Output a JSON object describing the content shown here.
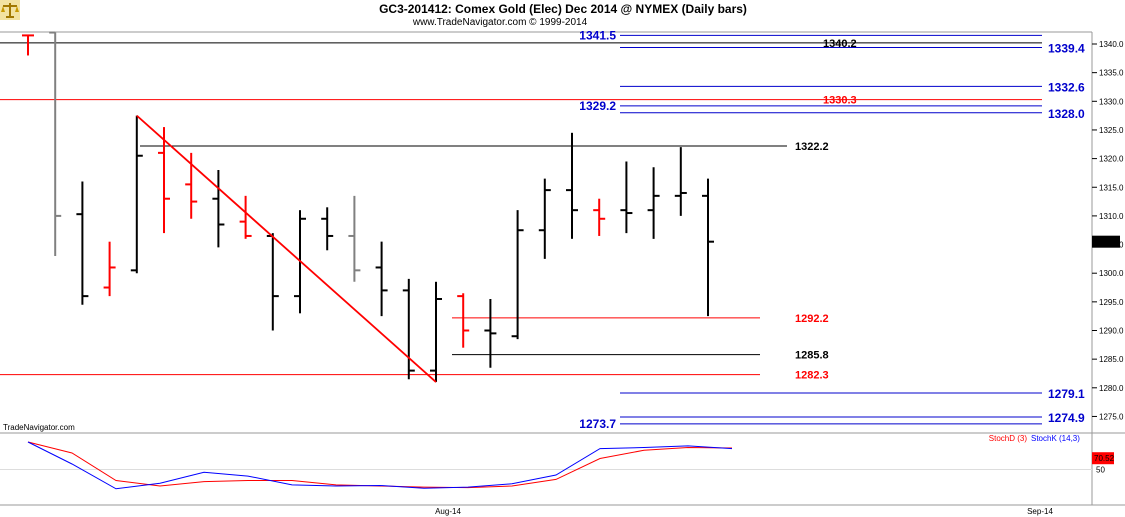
{
  "header": {
    "title": "GC3-201412:  Comex Gold (Elec) Dec 2014 @ NYMEX  (Daily bars)",
    "subtitle": "www.TradeNavigator.com © 1999-2014",
    "watermark": "TradeNavigator.com",
    "logo_icon": "scales-icon"
  },
  "colors": {
    "up_bar": "#000000",
    "down_bar": "#ff0000",
    "flat_bar": "#808080",
    "blue_level": "#0000cc",
    "red_level": "#ff0000",
    "black_level": "#000000",
    "stoch_d": "#ff0000",
    "stoch_k": "#0000ff"
  },
  "chart_data": {
    "type": "ohlc",
    "ylim": [
      1268,
      1345
    ],
    "y_ticks": [
      "1340.0",
      "1335.0",
      "1330.0",
      "1325.0",
      "1320.0",
      "1315.0",
      "1310.0",
      "1305.0",
      "1300.0",
      "1295.0",
      "1290.0",
      "1285.0",
      "1280.0",
      "1275.0"
    ],
    "x_ticks": [
      "Aug-14",
      "Sep-14"
    ],
    "last_price": "1305.5",
    "bars": [
      {
        "o": 1341.5,
        "h": 1341.5,
        "l": 1338.0,
        "c": 1341.5,
        "color": "down"
      },
      {
        "o": 1342.0,
        "h": 1342.0,
        "l": 1303.0,
        "c": 1310.0,
        "color": "flat"
      },
      {
        "o": 1310.3,
        "h": 1316.0,
        "l": 1294.5,
        "c": 1296.0,
        "color": "up"
      },
      {
        "o": 1297.5,
        "h": 1305.5,
        "l": 1296.0,
        "c": 1301.0,
        "color": "down"
      },
      {
        "o": 1300.5,
        "h": 1327.5,
        "l": 1300.0,
        "c": 1320.5,
        "color": "up"
      },
      {
        "o": 1321.0,
        "h": 1325.5,
        "l": 1307.0,
        "c": 1313.0,
        "color": "down"
      },
      {
        "o": 1315.5,
        "h": 1321.0,
        "l": 1309.5,
        "c": 1312.5,
        "color": "down"
      },
      {
        "o": 1313.0,
        "h": 1318.0,
        "l": 1304.5,
        "c": 1308.5,
        "color": "up"
      },
      {
        "o": 1309.0,
        "h": 1313.5,
        "l": 1306.0,
        "c": 1306.5,
        "color": "down"
      },
      {
        "o": 1306.5,
        "h": 1307.0,
        "l": 1290.0,
        "c": 1296.0,
        "color": "up"
      },
      {
        "o": 1296.0,
        "h": 1311.0,
        "l": 1293.0,
        "c": 1309.5,
        "color": "up"
      },
      {
        "o": 1309.5,
        "h": 1311.5,
        "l": 1304.0,
        "c": 1306.5,
        "color": "up"
      },
      {
        "o": 1306.5,
        "h": 1313.5,
        "l": 1298.5,
        "c": 1300.5,
        "color": "flat"
      },
      {
        "o": 1301.0,
        "h": 1305.5,
        "l": 1292.5,
        "c": 1297.0,
        "color": "up"
      },
      {
        "o": 1297.0,
        "h": 1299.0,
        "l": 1281.5,
        "c": 1283.0,
        "color": "up"
      },
      {
        "o": 1283.0,
        "h": 1298.5,
        "l": 1281.0,
        "c": 1295.5,
        "color": "up"
      },
      {
        "o": 1296.0,
        "h": 1296.5,
        "l": 1287.0,
        "c": 1290.0,
        "color": "down"
      },
      {
        "o": 1290.0,
        "h": 1295.5,
        "l": 1283.5,
        "c": 1289.5,
        "color": "up"
      },
      {
        "o": 1289.0,
        "h": 1311.0,
        "l": 1288.5,
        "c": 1307.5,
        "color": "up"
      },
      {
        "o": 1307.5,
        "h": 1316.5,
        "l": 1302.5,
        "c": 1314.5,
        "color": "up"
      },
      {
        "o": 1314.5,
        "h": 1324.5,
        "l": 1306.0,
        "c": 1311.0,
        "color": "up"
      },
      {
        "o": 1311.0,
        "h": 1313.0,
        "l": 1306.5,
        "c": 1309.5,
        "color": "down"
      },
      {
        "o": 1311.0,
        "h": 1319.5,
        "l": 1307.0,
        "c": 1310.5,
        "color": "up"
      },
      {
        "o": 1311.0,
        "h": 1318.5,
        "l": 1306.0,
        "c": 1313.5,
        "color": "up"
      },
      {
        "o": 1313.5,
        "h": 1322.0,
        "l": 1310.0,
        "c": 1314.0,
        "color": "up"
      },
      {
        "o": 1313.5,
        "h": 1316.5,
        "l": 1292.5,
        "c": 1305.5,
        "color": "up"
      }
    ],
    "levels": [
      {
        "value": 1341.5,
        "label": "1341.5",
        "color": "blue",
        "label_side": "left",
        "span": "short"
      },
      {
        "value": 1340.2,
        "label": "1340.2",
        "color": "black",
        "label_side": "mid",
        "span": "full"
      },
      {
        "value": 1339.4,
        "label": "1339.4",
        "color": "blue",
        "label_side": "right",
        "span": "short"
      },
      {
        "value": 1332.6,
        "label": "1332.6",
        "color": "blue",
        "label_side": "right",
        "span": "short"
      },
      {
        "value": 1330.3,
        "label": "1330.3",
        "color": "red",
        "label_side": "mid",
        "span": "full"
      },
      {
        "value": 1329.2,
        "label": "1329.2",
        "color": "blue",
        "label_side": "left",
        "span": "short"
      },
      {
        "value": 1328.0,
        "label": "1328.0",
        "color": "blue",
        "label_side": "right",
        "span": "short"
      },
      {
        "value": 1322.2,
        "label": "1322.2",
        "color": "black",
        "label_side": "mid2",
        "span": "from_high"
      },
      {
        "value": 1292.2,
        "label": "1292.2",
        "color": "red",
        "label_side": "mid2",
        "span": "from_mid"
      },
      {
        "value": 1285.8,
        "label": "1285.8",
        "color": "black",
        "label_side": "mid2",
        "span": "from_mid"
      },
      {
        "value": 1282.3,
        "label": "1282.3",
        "color": "red",
        "label_side": "mid2",
        "span": "full"
      },
      {
        "value": 1279.1,
        "label": "1279.1",
        "color": "blue",
        "label_side": "right",
        "span": "short"
      },
      {
        "value": 1274.9,
        "label": "1274.9",
        "color": "blue",
        "label_side": "right",
        "span": "short"
      },
      {
        "value": 1273.7,
        "label": "1273.7",
        "color": "blue",
        "label_side": "left",
        "span": "short"
      }
    ],
    "trendline": {
      "from_bar": 4,
      "from_value": 1327.5,
      "to_bar": 15,
      "to_value": 1281.0
    },
    "stochastic": {
      "legend_d": "StochD (3)",
      "legend_k": "StochK (14,3)",
      "last_value": "70.52",
      "tick": "50",
      "ylim": [
        0,
        100
      ],
      "k": [
        100,
        60,
        15,
        25,
        45,
        38,
        22,
        20,
        21,
        16,
        18,
        24,
        40,
        88,
        90,
        93,
        88
      ],
      "d": [
        100,
        80,
        30,
        20,
        28,
        30,
        30,
        22,
        20,
        18,
        17,
        20,
        32,
        70,
        85,
        90,
        89
      ]
    }
  }
}
